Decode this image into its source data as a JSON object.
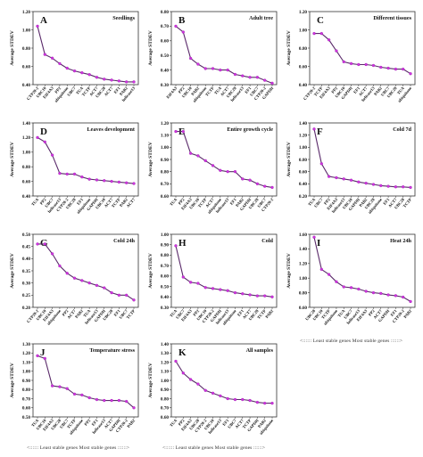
{
  "legend_note": "<:::::: Least stable genes  Most stable genes ::::::>",
  "colors": {
    "line": "#5a2a6a",
    "marker": "#d033e0",
    "axis": "#333333",
    "text": "#111111"
  },
  "chart_data": [
    {
      "type": "line",
      "letter": "A",
      "title": "Seedlings",
      "ylabel": "Average STDEV",
      "ylim": [
        0.4,
        1.2
      ],
      "yticks": [
        "0.40",
        "0.60",
        "0.80",
        "1.00",
        "1.20"
      ],
      "categories": [
        "CYP20-2",
        "UBC10",
        "EIF4A3",
        "PP2",
        "ubiquitone",
        "UBC7",
        "TUA",
        "TCTP",
        "ACT7",
        "UBC28",
        "ACT7",
        "EF1",
        "PAB2",
        "helicase13"
      ],
      "values": [
        1.04,
        0.73,
        0.69,
        0.63,
        0.58,
        0.55,
        0.53,
        0.51,
        0.48,
        0.46,
        0.45,
        0.44,
        0.43,
        0.43
      ]
    },
    {
      "type": "line",
      "letter": "B",
      "title": "Adult tree",
      "ylabel": "Average STDEV",
      "ylim": [
        0.3,
        0.8
      ],
      "yticks": [
        "0.30",
        "0.40",
        "0.50",
        "0.60",
        "0.70",
        "0.80"
      ],
      "categories": [
        "EIF4A3",
        "PP2",
        "UBC10",
        "PAB2",
        "ubiquitone",
        "TCTP",
        "TUA",
        "ACT7",
        "UBC28",
        "helicase13",
        "EF1",
        "UBC7",
        "CYP20-2",
        "GAPDH"
      ],
      "values": [
        0.7,
        0.66,
        0.48,
        0.44,
        0.41,
        0.41,
        0.4,
        0.4,
        0.37,
        0.36,
        0.35,
        0.35,
        0.33,
        0.31
      ]
    },
    {
      "type": "line",
      "letter": "C",
      "title": "Different tissues",
      "ylabel": "Average STDEV",
      "ylim": [
        0.4,
        1.2
      ],
      "yticks": [
        "0.40",
        "0.60",
        "0.80",
        "1.00",
        "1.20"
      ],
      "categories": [
        "CYP20-2",
        "TCTP",
        "EIF4A3",
        "PP2",
        "UBC10",
        "GAPDH",
        "EF1",
        "ACT7",
        "helicase13",
        "PAB2",
        "UBC7",
        "UBC28",
        "TUA",
        "ubiquitone"
      ],
      "values": [
        0.96,
        0.96,
        0.89,
        0.77,
        0.65,
        0.63,
        0.62,
        0.62,
        0.61,
        0.59,
        0.58,
        0.57,
        0.57,
        0.52
      ]
    },
    {
      "type": "line",
      "letter": "D",
      "title": "Leaves development",
      "ylabel": "Average STDEV",
      "ylim": [
        0.4,
        1.4
      ],
      "yticks": [
        "0.40",
        "0.60",
        "0.80",
        "1.00",
        "1.20",
        "1.40"
      ],
      "categories": [
        "TUA",
        "PP2",
        "UBC7",
        "helicase13",
        "CYP20-2",
        "UBC28",
        "EF1",
        "ubiquitone",
        "GAPDH",
        "UBC10",
        "ACT7",
        "TCTP",
        "PAB2",
        "ACT7"
      ],
      "values": [
        1.2,
        1.14,
        0.96,
        0.71,
        0.7,
        0.7,
        0.66,
        0.63,
        0.62,
        0.61,
        0.6,
        0.59,
        0.58,
        0.57
      ]
    },
    {
      "type": "line",
      "letter": "E",
      "title": "Entire growth cycle",
      "ylabel": "Average STDEV",
      "ylim": [
        0.6,
        1.2
      ],
      "yticks": [
        "0.60",
        "0.70",
        "0.80",
        "0.90",
        "1.00",
        "1.10",
        "1.20"
      ],
      "categories": [
        "TUA",
        "PP2",
        "EIF4A3",
        "UBC10",
        "TCTP",
        "ACT7",
        "ubiquitone",
        "helicase13",
        "EF1",
        "PAB2",
        "GAPDH",
        "UBC28",
        "UBC7",
        "CYP20-2"
      ],
      "values": [
        1.13,
        1.13,
        0.95,
        0.93,
        0.89,
        0.85,
        0.81,
        0.8,
        0.8,
        0.74,
        0.73,
        0.7,
        0.68,
        0.67
      ]
    },
    {
      "type": "line",
      "letter": "F",
      "title": "Cold 7d",
      "ylabel": "Average STDEV",
      "ylim": [
        0.2,
        1.4
      ],
      "yticks": [
        "0.20",
        "0.40",
        "0.60",
        "0.80",
        "1.00",
        "1.20",
        "1.40"
      ],
      "categories": [
        "TUA",
        "UBC7",
        "PP2",
        "EIF4A3",
        "helicase13",
        "UBC10",
        "GAPDH",
        "PAB2",
        "UBC28",
        "ubiquitone",
        "EF1",
        "ACT7",
        "UBC28",
        "TCTP"
      ],
      "values": [
        1.3,
        0.73,
        0.52,
        0.5,
        0.48,
        0.46,
        0.43,
        0.41,
        0.39,
        0.37,
        0.36,
        0.35,
        0.35,
        0.34
      ]
    },
    {
      "type": "line",
      "letter": "G",
      "title": "Cold 24h",
      "ylabel": "Average STDEV",
      "ylim": [
        0.2,
        0.5
      ],
      "yticks": [
        "0.20",
        "0.25",
        "0.30",
        "0.35",
        "0.40",
        "0.45",
        "0.50"
      ],
      "categories": [
        "CYP20-2",
        "UBC10",
        "EIF4A3",
        "ubiquitone",
        "PP2",
        "ACT7",
        "PAB2",
        "TUA",
        "helicase13",
        "GAPDH",
        "UBC28",
        "EF1",
        "UBC7",
        "TCTP"
      ],
      "values": [
        0.46,
        0.46,
        0.42,
        0.37,
        0.34,
        0.32,
        0.31,
        0.3,
        0.29,
        0.28,
        0.26,
        0.25,
        0.25,
        0.23
      ]
    },
    {
      "type": "line",
      "letter": "H",
      "title": "Cold",
      "ylabel": "Average STDEV",
      "ylim": [
        0.3,
        1.0
      ],
      "yticks": [
        "0.30",
        "0.40",
        "0.50",
        "0.60",
        "0.70",
        "0.80",
        "0.90",
        "1.00"
      ],
      "categories": [
        "TUA",
        "UBC7",
        "EIF4A3",
        "PP2",
        "UBC10",
        "CYP20-2",
        "GAPDH",
        "helicase13",
        "ubiquitone",
        "EF1",
        "ACT7",
        "UBC28",
        "TCTP",
        "PAB2"
      ],
      "values": [
        0.89,
        0.59,
        0.54,
        0.53,
        0.49,
        0.48,
        0.47,
        0.46,
        0.44,
        0.43,
        0.42,
        0.41,
        0.41,
        0.4
      ]
    },
    {
      "type": "line",
      "letter": "I",
      "title": "Heat 24h",
      "ylabel": "Average STDEV",
      "ylim": [
        0.6,
        1.6
      ],
      "yticks": [
        "0.60",
        "0.80",
        "1.00",
        "1.20",
        "1.40",
        "1.60"
      ],
      "categories": [
        "UBC28",
        "UBC10",
        "TCTP",
        "ubiquitone",
        "TUA",
        "UBC7",
        "helicase13",
        "EIF4A3",
        "PP2",
        "ACT7",
        "GAPDH",
        "EF1",
        "CYP20-2",
        "PAB2"
      ],
      "values": [
        1.56,
        1.12,
        1.05,
        0.95,
        0.88,
        0.87,
        0.85,
        0.82,
        0.8,
        0.79,
        0.77,
        0.76,
        0.74,
        0.68
      ]
    },
    {
      "type": "line",
      "letter": "J",
      "title": "Temperature stress",
      "ylabel": "Average STDEV",
      "ylim": [
        0.5,
        1.3
      ],
      "yticks": [
        "0.50",
        "0.60",
        "0.70",
        "0.80",
        "0.90",
        "1.00",
        "1.10",
        "1.20",
        "1.30"
      ],
      "categories": [
        "TUA",
        "UBC10",
        "EIF4A3",
        "UBC28",
        "UBC7",
        "TCTP",
        "ubiquitone",
        "PP2",
        "EF1",
        "helicase13",
        "ACT7",
        "GAPDH",
        "CYP20-2",
        "PAB2"
      ],
      "values": [
        1.17,
        1.14,
        0.84,
        0.83,
        0.81,
        0.75,
        0.74,
        0.71,
        0.69,
        0.68,
        0.68,
        0.68,
        0.67,
        0.6
      ]
    },
    {
      "type": "line",
      "letter": "K",
      "title": "All samples",
      "ylabel": "Average STDEV",
      "ylim": [
        0.6,
        1.4
      ],
      "yticks": [
        "0.60",
        "0.70",
        "0.80",
        "0.90",
        "1.00",
        "1.10",
        "1.20",
        "1.30",
        "1.40"
      ],
      "categories": [
        "TUA",
        "PP2",
        "EIF4A3",
        "UBC28",
        "CYP20-2",
        "UBC10",
        "helicase13",
        "EF1",
        "UBC7",
        "ACT7",
        "TCTP",
        "GAPDH",
        "PAB2",
        "ubiquitone"
      ],
      "values": [
        1.21,
        1.08,
        1.01,
        0.96,
        0.89,
        0.86,
        0.83,
        0.8,
        0.79,
        0.79,
        0.78,
        0.76,
        0.75,
        0.75
      ]
    }
  ]
}
